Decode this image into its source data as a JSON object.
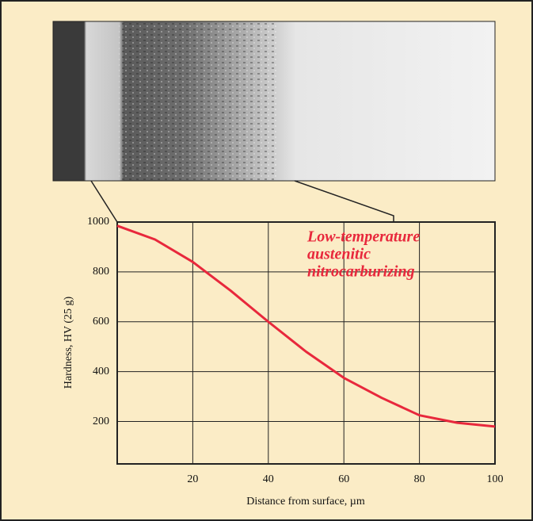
{
  "chart_data": {
    "type": "line",
    "x_label": "Distance from surface, µm",
    "y_label": "Hardness, HV (25 g)",
    "annotation": [
      "Low-temperature",
      "austenitic",
      "nitrocarburizing"
    ],
    "x": [
      0,
      10,
      20,
      30,
      40,
      50,
      60,
      70,
      80,
      90,
      100
    ],
    "series": [
      {
        "color": "#e8283c",
        "values": [
          985,
          930,
          840,
          725,
          600,
          480,
          375,
          295,
          225,
          195,
          180
        ]
      }
    ],
    "xlim": [
      0,
      100
    ],
    "xticks": [
      20,
      40,
      60,
      80,
      100
    ],
    "ylim": [
      30,
      1000
    ],
    "yticks": [
      200,
      400,
      600,
      800,
      1000
    ],
    "grid": true
  }
}
